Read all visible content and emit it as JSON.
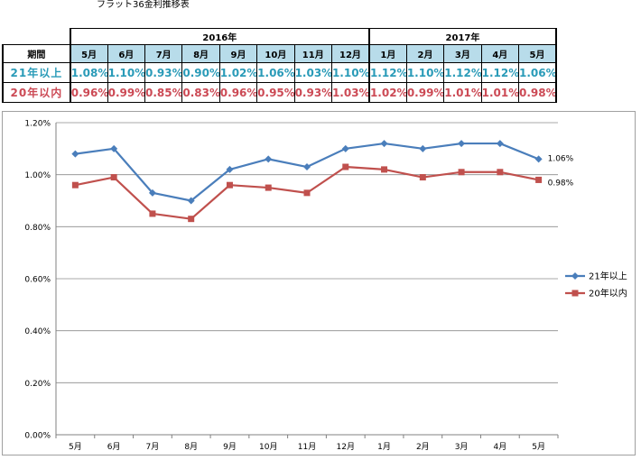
{
  "title": "フラット36金利推移表",
  "table": {
    "header_label": "期間",
    "years": [
      {
        "label": "2016年",
        "span": 8
      },
      {
        "label": "2017年",
        "span": 5
      }
    ],
    "months": [
      "5月",
      "6月",
      "7月",
      "8月",
      "9月",
      "10月",
      "11月",
      "12月",
      "1月",
      "2月",
      "3月",
      "4月",
      "5月"
    ],
    "rows": [
      {
        "label": "21年以上",
        "values": [
          "1.08%",
          "1.10%",
          "0.93%",
          "0.90%",
          "1.02%",
          "1.06%",
          "1.03%",
          "1.10%",
          "1.12%",
          "1.10%",
          "1.12%",
          "1.12%",
          "1.06%"
        ]
      },
      {
        "label": "20年以内",
        "values": [
          "0.96%",
          "0.99%",
          "0.85%",
          "0.83%",
          "0.96%",
          "0.95%",
          "0.93%",
          "1.03%",
          "1.02%",
          "0.99%",
          "1.01%",
          "1.01%",
          "0.98%"
        ]
      }
    ]
  },
  "chart_data": {
    "type": "line",
    "title": "",
    "xlabel": "",
    "ylabel": "",
    "categories": [
      "5月",
      "6月",
      "7月",
      "8月",
      "9月",
      "10月",
      "11月",
      "12月",
      "1月",
      "2月",
      "3月",
      "4月",
      "5月"
    ],
    "yticks": [
      "0.00%",
      "0.20%",
      "0.40%",
      "0.60%",
      "0.80%",
      "1.00%",
      "1.20%"
    ],
    "ylim": [
      0,
      1.2
    ],
    "grid": true,
    "legend": "right",
    "series": [
      {
        "name": "21年以上",
        "color": "#4a7ebb",
        "marker": "diamond",
        "values": [
          1.08,
          1.1,
          0.93,
          0.9,
          1.02,
          1.06,
          1.03,
          1.1,
          1.12,
          1.1,
          1.12,
          1.12,
          1.06
        ],
        "end_label": "1.06%"
      },
      {
        "name": "20年以内",
        "color": "#c0504d",
        "marker": "square",
        "values": [
          0.96,
          0.99,
          0.85,
          0.83,
          0.96,
          0.95,
          0.93,
          1.03,
          1.02,
          0.99,
          1.01,
          1.01,
          0.98
        ],
        "end_label": "0.98%"
      }
    ]
  }
}
